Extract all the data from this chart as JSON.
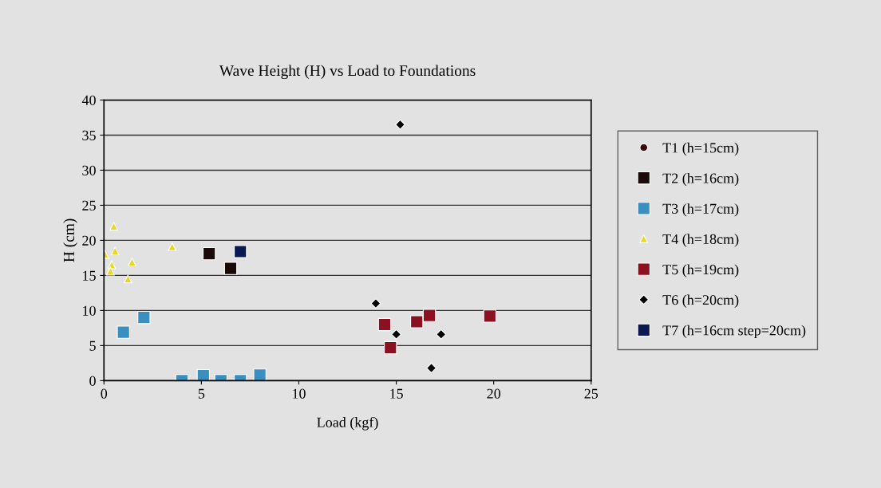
{
  "chart_data": {
    "type": "scatter",
    "title": "Wave Height (H) vs Load to Foundations",
    "xlabel": "Load (kgf)",
    "ylabel": "H (cm)",
    "xlim": [
      0,
      25
    ],
    "xticks": [
      0,
      5,
      10,
      15,
      20,
      25
    ],
    "ylim": [
      0,
      40
    ],
    "yticks": [
      0,
      5,
      10,
      15,
      20,
      25,
      30,
      35,
      40
    ],
    "grid": "y",
    "legend": "right",
    "series": [
      {
        "name": "T1 (h=15cm)",
        "color": "#3a0a0a",
        "marker": "circle"
      },
      {
        "name": "T2 (h=16cm)",
        "color": "#1a0a0a",
        "marker": "square",
        "x": [
          5.4,
          6.5
        ],
        "values": [
          18.1,
          16.0
        ]
      },
      {
        "name": "T3 (h=17cm)",
        "color": "#3a8fc0",
        "marker": "square",
        "x": [
          1.0,
          2.05,
          4.0,
          5.1,
          6.0,
          7.0,
          8.0
        ],
        "values": [
          6.9,
          9.0,
          0,
          0.7,
          0,
          0,
          0.8
        ]
      },
      {
        "name": "T4 (h=18cm)",
        "color": "#e8d820",
        "marker": "triangle",
        "x": [
          0.5,
          0.05,
          0.57,
          0.4,
          0.33,
          1.44,
          1.23,
          3.5
        ],
        "values": [
          22.0,
          18.0,
          18.5,
          16.5,
          15.6,
          16.9,
          14.5,
          19.1
        ]
      },
      {
        "name": "T5 (h=19cm)",
        "color": "#8b1020",
        "marker": "square",
        "x": [
          14.4,
          14.7,
          16.05,
          16.7,
          19.8
        ],
        "values": [
          8.0,
          4.7,
          8.4,
          9.3,
          9.2
        ]
      },
      {
        "name": "T6 (h=20cm)",
        "color": "#000000",
        "marker": "diamond",
        "x": [
          15.2,
          13.95,
          15.0,
          17.3,
          16.8
        ],
        "values": [
          36.5,
          11.0,
          6.6,
          6.6,
          1.8
        ]
      },
      {
        "name": "T7 (h=16cm step=20cm)",
        "color": "#0a1a50",
        "marker": "square",
        "x": [
          7.0
        ],
        "values": [
          18.4
        ]
      }
    ]
  }
}
